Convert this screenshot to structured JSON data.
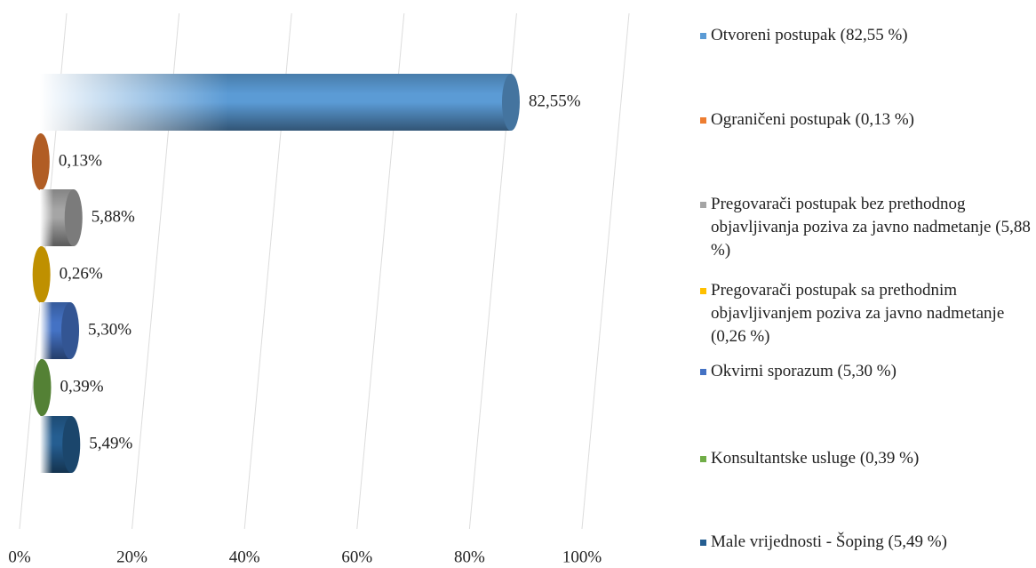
{
  "chart_data": {
    "type": "bar",
    "orientation": "horizontal",
    "categories": [
      "Otvoreni postupak (82,55 %)",
      "Ograničeni postupak (0,13 %)",
      "Pregovarači postupak bez prethodnog objavljivanja poziva za javno nadmetanje (5,88 %)",
      "Pregovarači postupak sa prethodnim objavljivanjem poziva za javno nadmetanje (0,26 %)",
      "Okvirni sporazum (5,30 %)",
      "Konsultantske usluge (0,39 %)",
      "Male vrijednosti - Šoping (5,49 %)"
    ],
    "values": [
      82.55,
      0.13,
      5.88,
      0.26,
      5.3,
      0.39,
      5.49
    ],
    "value_labels": [
      "82,55%",
      "0,13%",
      "5,88%",
      "0,26%",
      "5,30%",
      "0,39%",
      "5,49%"
    ],
    "colors": [
      "#5b9bd5",
      "#ed7d31",
      "#a5a5a5",
      "#ffc000",
      "#4472c4",
      "#70ad47",
      "#255e91"
    ],
    "xlim": [
      0,
      100
    ],
    "xticks": [
      {
        "value": 0,
        "label": "0%"
      },
      {
        "value": 20,
        "label": "20%"
      },
      {
        "value": 40,
        "label": "40%"
      },
      {
        "value": 60,
        "label": "60%"
      },
      {
        "value": 80,
        "label": "80%"
      },
      {
        "value": 100,
        "label": "100%"
      }
    ],
    "grid": true,
    "legend": "right"
  }
}
